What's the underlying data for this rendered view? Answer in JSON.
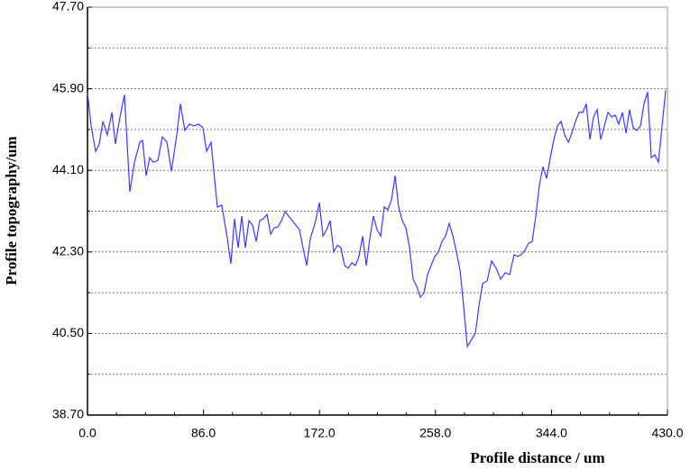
{
  "chart_data": {
    "type": "line",
    "xlabel": "Profile distance / um",
    "ylabel": "Profile topography/um",
    "xlim": [
      0,
      430
    ],
    "ylim": [
      38.7,
      47.7
    ],
    "xticks": [
      {
        "value": 0,
        "label": "0.0"
      },
      {
        "value": 86,
        "label": "86.0"
      },
      {
        "value": 172,
        "label": "172.0"
      },
      {
        "value": 258,
        "label": "258.0"
      },
      {
        "value": 344,
        "label": "344.0"
      },
      {
        "value": 430,
        "label": "430.0"
      }
    ],
    "xminor": [
      21.5,
      43,
      64.5,
      107.5,
      129,
      150.5,
      193.5,
      215,
      236.5,
      279.5,
      301,
      322.5,
      365.5,
      387,
      408.5
    ],
    "yticks": [
      {
        "value": 38.7,
        "label": "38.70"
      },
      {
        "value": 40.5,
        "label": "40.50"
      },
      {
        "value": 42.3,
        "label": "42.30"
      },
      {
        "value": 44.1,
        "label": "44.10"
      },
      {
        "value": 45.9,
        "label": "45.90"
      },
      {
        "value": 47.7,
        "label": "47.70"
      }
    ],
    "yminor": [
      39.6,
      41.4,
      43.2,
      45,
      46.8
    ],
    "grid": true,
    "series": [
      {
        "color": "#3a3aff",
        "x": [
          0.0,
          2.7,
          6.0,
          8.7,
          11.4,
          14.7,
          18.1,
          20.7,
          24.1,
          27.4,
          31.4,
          34.8,
          38.8,
          40.8,
          43.5,
          46.1,
          48.8,
          52.2,
          55.5,
          58.9,
          62.2,
          66.2,
          68.9,
          72.2,
          75.6,
          78.9,
          82.2,
          85.6,
          88.3,
          91.6,
          94.3,
          96.3,
          99.6,
          103.7,
          106.3,
          109.0,
          111.7,
          114.4,
          117.0,
          119.7,
          122.4,
          125.1,
          127.7,
          130.4,
          133.1,
          135.8,
          138.4,
          141.1,
          143.8,
          146.5,
          149.1,
          151.8,
          154.5,
          157.2,
          159.8,
          162.5,
          165.2,
          169.2,
          171.9,
          174.6,
          177.2,
          179.9,
          182.6,
          185.3,
          187.9,
          190.6,
          193.3,
          196.0,
          198.6,
          201.3,
          204.0,
          206.7,
          209.3,
          212.0,
          214.7,
          217.4,
          220.0,
          222.7,
          225.4,
          228.1,
          230.7,
          233.4,
          236.1,
          238.8,
          241.4,
          244.1,
          246.8,
          249.5,
          252.1,
          254.8,
          257.5,
          260.2,
          262.8,
          265.5,
          268.2,
          270.9,
          273.5,
          276.2,
          278.9,
          281.6,
          287.6,
          290.2,
          292.9,
          296.3,
          299.6,
          303.0,
          306.3,
          309.7,
          313.0,
          316.3,
          319.0,
          321.7,
          324.4,
          327.0,
          329.7,
          332.4,
          335.1,
          337.7,
          340.4,
          343.1,
          345.8,
          348.4,
          351.1,
          353.8,
          356.5,
          359.1,
          361.8,
          364.5,
          367.2,
          369.8,
          372.5,
          375.2,
          377.9,
          380.5,
          383.2,
          385.9,
          388.6,
          391.2,
          393.9,
          396.6,
          399.3,
          401.9,
          404.6,
          407.3,
          410.0,
          412.6,
          415.3,
          418.0,
          420.7,
          423.3,
          426.0,
          428.7
        ],
        "values": [
          45.81,
          45.08,
          44.52,
          44.68,
          45.18,
          44.88,
          45.38,
          44.68,
          45.28,
          45.77,
          43.63,
          44.28,
          44.72,
          44.76,
          43.98,
          44.38,
          44.28,
          44.32,
          44.84,
          44.72,
          44.08,
          44.88,
          45.57,
          44.98,
          45.12,
          45.08,
          45.12,
          45.04,
          44.52,
          44.72,
          43.89,
          43.29,
          43.33,
          42.59,
          42.04,
          43.03,
          42.39,
          43.09,
          42.39,
          42.99,
          42.89,
          42.53,
          42.99,
          43.03,
          43.13,
          42.69,
          42.83,
          42.85,
          42.99,
          43.19,
          43.09,
          42.99,
          42.89,
          42.79,
          42.39,
          42.0,
          42.59,
          42.99,
          43.39,
          42.65,
          42.79,
          42.99,
          42.3,
          42.45,
          42.39,
          42.0,
          41.94,
          42.06,
          42.0,
          42.2,
          42.65,
          42.0,
          42.59,
          43.09,
          42.79,
          42.65,
          43.29,
          43.23,
          43.45,
          43.98,
          43.29,
          42.99,
          42.83,
          42.39,
          41.7,
          41.54,
          41.3,
          41.4,
          41.8,
          42.0,
          42.2,
          42.3,
          42.53,
          42.65,
          42.93,
          42.65,
          42.3,
          41.9,
          41.1,
          40.21,
          40.51,
          41.1,
          41.6,
          41.66,
          42.1,
          41.94,
          41.7,
          41.84,
          41.8,
          42.24,
          42.2,
          42.24,
          42.34,
          42.49,
          42.53,
          43.09,
          43.79,
          44.18,
          43.92,
          44.38,
          44.78,
          45.08,
          45.18,
          44.88,
          44.72,
          44.92,
          45.18,
          45.38,
          45.38,
          45.57,
          44.78,
          45.28,
          45.44,
          44.78,
          45.08,
          45.38,
          45.28,
          45.32,
          45.12,
          45.38,
          44.92,
          45.44,
          45.04,
          44.98,
          45.08,
          45.57,
          45.83,
          44.38,
          44.44,
          44.28,
          45.08,
          45.87
        ]
      }
    ]
  }
}
